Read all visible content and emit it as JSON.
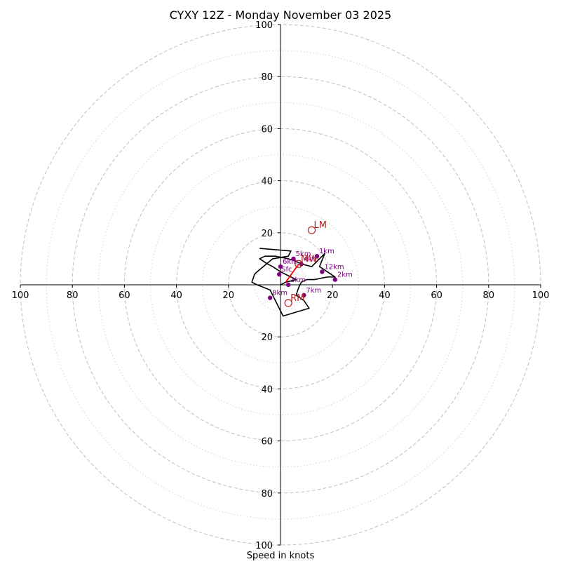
{
  "chart_data": {
    "type": "scatter",
    "title": "CYXY 12Z - Monday November 03 2025",
    "xlabel": "Speed in knots",
    "ylabel": "",
    "xlim": [
      -100,
      100
    ],
    "ylim": [
      -100,
      100
    ],
    "grid": true,
    "rings_dashed": [
      20,
      40,
      60,
      80,
      100
    ],
    "rings_dotted": [
      10,
      30,
      50,
      70,
      90
    ],
    "x_tick_labels": [
      "100",
      "80",
      "60",
      "40",
      "20",
      "20",
      "40",
      "60",
      "80",
      "100"
    ],
    "x_tick_values": [
      -100,
      -80,
      -60,
      -40,
      -20,
      20,
      40,
      60,
      80,
      100
    ],
    "y_tick_labels": [
      "100",
      "80",
      "60",
      "40",
      "20",
      "20",
      "40",
      "60",
      "80",
      "100"
    ],
    "y_tick_values": [
      100,
      80,
      60,
      40,
      20,
      -20,
      -40,
      -60,
      -80,
      -100
    ],
    "hodograph_trace": [
      [
        0,
        0
      ],
      [
        2,
        1
      ],
      [
        6,
        2
      ],
      [
        4,
        3
      ],
      [
        0,
        5
      ],
      [
        -3,
        7
      ],
      [
        -5,
        8
      ],
      [
        -8,
        10
      ],
      [
        -6,
        11
      ],
      [
        -2,
        11
      ],
      [
        3,
        10
      ],
      [
        6,
        9
      ],
      [
        8,
        8
      ],
      [
        12,
        7
      ],
      [
        15,
        10
      ],
      [
        17,
        12
      ],
      [
        15,
        7
      ],
      [
        18,
        5
      ],
      [
        21,
        3
      ],
      [
        18,
        3
      ],
      [
        13,
        2
      ],
      [
        10,
        2
      ],
      [
        8,
        1
      ],
      [
        7,
        -1
      ],
      [
        6,
        -4
      ],
      [
        9,
        -6
      ],
      [
        11,
        -9
      ],
      [
        1,
        -12
      ],
      [
        -2,
        -6
      ],
      [
        -4,
        -2
      ],
      [
        -9,
        0
      ],
      [
        -11,
        1
      ],
      [
        -10,
        4
      ],
      [
        -9,
        5
      ],
      [
        -3,
        10
      ],
      [
        3,
        11
      ],
      [
        4,
        13
      ],
      [
        -8,
        14
      ]
    ],
    "height_markers": [
      {
        "label": "Sfc",
        "x": -0.5,
        "y": 4
      },
      {
        "label": "1km",
        "x": 14,
        "y": 11
      },
      {
        "label": "2km",
        "x": 21,
        "y": 2
      },
      {
        "label": "3km",
        "x": 3,
        "y": 0
      },
      {
        "label": "4km",
        "x": 8,
        "y": 8
      },
      {
        "label": "5km",
        "x": 5,
        "y": 10
      },
      {
        "label": "6km",
        "x": 0,
        "y": 7
      },
      {
        "label": "7km",
        "x": 9,
        "y": -4
      },
      {
        "label": "8km",
        "x": -4,
        "y": -5
      },
      {
        "label": "12km",
        "x": 16,
        "y": 5
      }
    ],
    "storm_motions": [
      {
        "label": "LM",
        "x": 12,
        "y": 21
      },
      {
        "label": "RM",
        "x": 3,
        "y": -7
      },
      {
        "label": "MW",
        "x": 7,
        "y": 8
      }
    ],
    "shear_vector": {
      "from": [
        2,
        1
      ],
      "to": [
        7,
        8
      ]
    },
    "colors": {
      "trace": "#000000",
      "marker": "#800080",
      "storm": "#b22222",
      "shear": "#ff0000",
      "grid": "#bfbfbf",
      "grid_dotted": "#d3d3d3"
    }
  }
}
